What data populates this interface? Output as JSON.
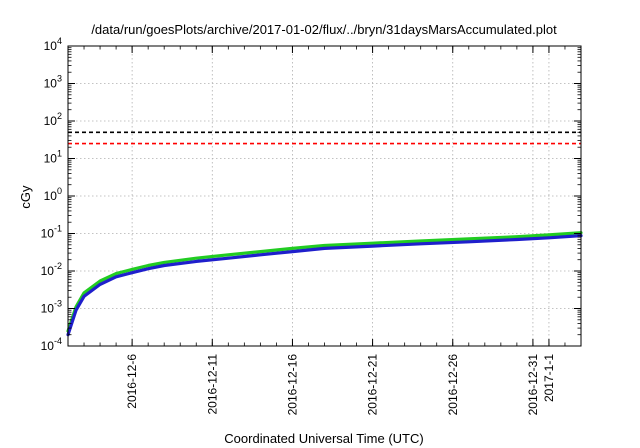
{
  "chart_data": {
    "type": "line",
    "title": "/data/run/goesPlots/archive/2017-01-02/flux/../bryn/31daysMarsAccumulated.plot",
    "xlabel": "Coordinated Universal Time (UTC)",
    "ylabel": "cGy",
    "y_scale": "log",
    "ylim_exponents": [
      -4,
      4
    ],
    "xlim": [
      "2016-12-02",
      "2017-01-03"
    ],
    "grid": true,
    "y_ticks": [
      {
        "base": "10",
        "exp": "-4"
      },
      {
        "base": "10",
        "exp": "-3"
      },
      {
        "base": "10",
        "exp": "-2"
      },
      {
        "base": "10",
        "exp": "-1"
      },
      {
        "base": "10",
        "exp": "0"
      },
      {
        "base": "10",
        "exp": "1"
      },
      {
        "base": "10",
        "exp": "2"
      },
      {
        "base": "10",
        "exp": "3"
      },
      {
        "base": "10",
        "exp": "4"
      }
    ],
    "x_ticks": [
      {
        "date": "2016-12-06",
        "label": "2016-12-6"
      },
      {
        "date": "2016-12-11",
        "label": "2016-12-11"
      },
      {
        "date": "2016-12-16",
        "label": "2016-12-16"
      },
      {
        "date": "2016-12-21",
        "label": "2016-12-21"
      },
      {
        "date": "2016-12-26",
        "label": "2016-12-26"
      },
      {
        "date": "2016-12-31",
        "label": "2016-12-31"
      },
      {
        "date": "2017-01-01",
        "label": "2017-1-1"
      }
    ],
    "thresholds": [
      {
        "value": 50,
        "color": "#000000"
      },
      {
        "value": 25,
        "color": "#ff0000"
      }
    ],
    "series": [
      {
        "color": "#22cc22",
        "x": [
          "2016-12-02",
          "2016-12-02T12:00",
          "2016-12-03",
          "2016-12-04",
          "2016-12-05",
          "2016-12-06",
          "2016-12-07",
          "2016-12-08",
          "2016-12-10",
          "2016-12-12",
          "2016-12-14",
          "2016-12-16",
          "2016-12-18",
          "2016-12-21",
          "2016-12-24",
          "2016-12-27",
          "2016-12-30",
          "2017-01-01",
          "2017-01-03"
        ],
        "values": [
          0.00025,
          0.0011,
          0.0026,
          0.0054,
          0.0085,
          0.011,
          0.014,
          0.017,
          0.022,
          0.027,
          0.033,
          0.04,
          0.048,
          0.055,
          0.063,
          0.072,
          0.082,
          0.092,
          0.105
        ]
      },
      {
        "color": "#1f1fcc",
        "x": [
          "2016-12-02",
          "2016-12-02T12:00",
          "2016-12-03",
          "2016-12-04",
          "2016-12-05",
          "2016-12-06",
          "2016-12-07",
          "2016-12-08",
          "2016-12-10",
          "2016-12-12",
          "2016-12-14",
          "2016-12-16",
          "2016-12-18",
          "2016-12-21",
          "2016-12-24",
          "2016-12-27",
          "2016-12-30",
          "2017-01-01",
          "2017-01-03"
        ],
        "values": [
          0.0002,
          0.0009,
          0.0021,
          0.0044,
          0.007,
          0.009,
          0.0115,
          0.014,
          0.018,
          0.022,
          0.027,
          0.033,
          0.04,
          0.046,
          0.053,
          0.06,
          0.069,
          0.077,
          0.088
        ]
      }
    ]
  }
}
